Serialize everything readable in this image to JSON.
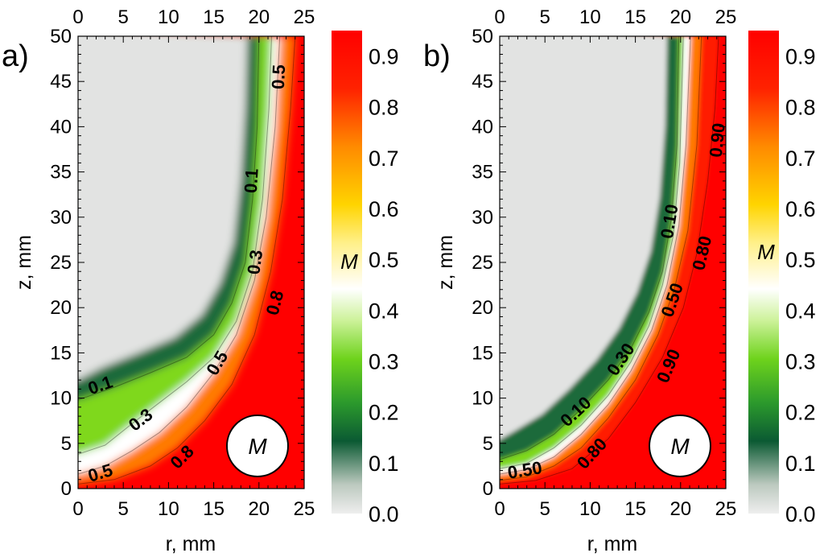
{
  "chart_data": [
    {
      "type": "heatmap",
      "panel_label": "a)",
      "xlabel": "r, mm",
      "ylabel": "z, mm",
      "xlim": [
        0,
        25
      ],
      "ylim": [
        0,
        50
      ],
      "x_ticks": [
        "0",
        "5",
        "10",
        "15",
        "20",
        "25"
      ],
      "y_ticks": [
        "0",
        "5",
        "10",
        "15",
        "20",
        "25",
        "30",
        "35",
        "40",
        "45",
        "50"
      ],
      "marker_label": "M",
      "colorbar": {
        "title": "M",
        "range": [
          0.0,
          0.95
        ],
        "ticks": [
          "0.0",
          "0.1",
          "0.2",
          "0.3",
          "0.4",
          "0.5",
          "0.6",
          "0.7",
          "0.8",
          "0.9"
        ],
        "colors": [
          "#e6e6e6",
          "#0b5a33",
          "#6ed31c",
          "#ffffff",
          "#ff9000",
          "#ff0000"
        ]
      },
      "contours": [
        {
          "level": "0.1",
          "points": [
            [
              0,
              9.8
            ],
            [
              4,
              11.2
            ],
            [
              8,
              12.8
            ],
            [
              12,
              14.5
            ],
            [
              15,
              17
            ],
            [
              17,
              20.5
            ],
            [
              18.5,
              25
            ],
            [
              19.3,
              32
            ],
            [
              19.8,
              40
            ],
            [
              20,
              50
            ]
          ]
        },
        {
          "level": "0.3",
          "points": [
            [
              0,
              3.8
            ],
            [
              3,
              4.8
            ],
            [
              6,
              7.2
            ],
            [
              9,
              9.5
            ],
            [
              12,
              11.8
            ],
            [
              15,
              14.5
            ],
            [
              17.5,
              18.5
            ],
            [
              19.3,
              24
            ],
            [
              20.4,
              32
            ],
            [
              21.1,
              42
            ],
            [
              21.4,
              50
            ]
          ]
        },
        {
          "level": "0.5",
          "points": [
            [
              0,
              1.6
            ],
            [
              3,
              2.5
            ],
            [
              6,
              4.2
            ],
            [
              9,
              6.2
            ],
            [
              12,
              9
            ],
            [
              15,
              12.8
            ],
            [
              17.5,
              17
            ],
            [
              19.5,
              23
            ],
            [
              20.8,
              30
            ],
            [
              21.8,
              40
            ],
            [
              22.3,
              50
            ]
          ]
        },
        {
          "level": "0.8",
          "points": [
            [
              0,
              0.5
            ],
            [
              4,
              1
            ],
            [
              8,
              2.5
            ],
            [
              11,
              4.5
            ],
            [
              14,
              7.5
            ],
            [
              17,
              11.5
            ],
            [
              19.5,
              17
            ],
            [
              21.3,
              24
            ],
            [
              22.6,
              32
            ],
            [
              23.5,
              42
            ],
            [
              24,
              50
            ]
          ]
        }
      ],
      "contour_labels": [
        {
          "text": "0.1",
          "r": 2.5,
          "z": 11.3
        },
        {
          "text": "0.1",
          "r": 19.3,
          "z": 34
        },
        {
          "text": "0.3",
          "r": 7,
          "z": 7.5
        },
        {
          "text": "0.3",
          "r": 19.7,
          "z": 25
        },
        {
          "text": "0.5",
          "r": 2.5,
          "z": 1.6
        },
        {
          "text": "0.5",
          "r": 15.5,
          "z": 13.8
        },
        {
          "text": "0.5",
          "r": 22.3,
          "z": 45.5
        },
        {
          "text": "0.8",
          "r": 11.6,
          "z": 3.4
        },
        {
          "text": "0.8",
          "r": 21.9,
          "z": 20.5
        }
      ]
    },
    {
      "type": "heatmap",
      "panel_label": "b)",
      "xlabel": "r, mm",
      "ylabel": "z, mm",
      "xlim": [
        0,
        25
      ],
      "ylim": [
        0,
        50
      ],
      "x_ticks": [
        "0",
        "5",
        "10",
        "15",
        "20",
        "25"
      ],
      "y_ticks": [
        "0",
        "5",
        "10",
        "15",
        "20",
        "25",
        "30",
        "35",
        "40",
        "45",
        "50"
      ],
      "marker_label": "M",
      "colorbar": {
        "title": "M",
        "range": [
          0.0,
          0.95
        ],
        "ticks": [
          "0.0",
          "0.1",
          "0.2",
          "0.3",
          "0.4",
          "0.5",
          "0.6",
          "0.7",
          "0.8",
          "0.9"
        ],
        "colors": [
          "#e6e6e6",
          "#0b5a33",
          "#6ed31c",
          "#ffffff",
          "#ff9000",
          "#ff0000"
        ]
      },
      "contours": [
        {
          "level": "0.10",
          "points": [
            [
              0,
              3.2
            ],
            [
              3,
              4.2
            ],
            [
              6,
              6
            ],
            [
              9,
              8.8
            ],
            [
              12,
              12
            ],
            [
              14.5,
              15.5
            ],
            [
              16.5,
              19.5
            ],
            [
              18,
              24
            ],
            [
              19,
              30
            ],
            [
              19.6,
              38
            ],
            [
              19.8,
              50
            ]
          ]
        },
        {
          "level": "0.30",
          "points": [
            [
              0,
              2.2
            ],
            [
              3,
              2.8
            ],
            [
              6,
              4.5
            ],
            [
              9,
              7
            ],
            [
              12,
              10.3
            ],
            [
              14.5,
              14
            ],
            [
              16.5,
              18
            ],
            [
              18,
              22.5
            ],
            [
              19.2,
              28
            ],
            [
              19.9,
              36
            ],
            [
              20.3,
              50
            ]
          ]
        },
        {
          "level": "0.50",
          "points": [
            [
              0,
              1.6
            ],
            [
              3,
              2.1
            ],
            [
              6,
              3.5
            ],
            [
              9,
              6
            ],
            [
              12,
              9.3
            ],
            [
              14.5,
              13
            ],
            [
              16.8,
              17.5
            ],
            [
              18.5,
              22.5
            ],
            [
              19.8,
              29
            ],
            [
              20.6,
              38
            ],
            [
              21.1,
              50
            ]
          ]
        },
        {
          "level": "0.80",
          "points": [
            [
              0,
              0.9
            ],
            [
              3,
              1.3
            ],
            [
              6,
              2.5
            ],
            [
              9,
              4.5
            ],
            [
              12,
              7.8
            ],
            [
              15,
              12
            ],
            [
              17.5,
              17
            ],
            [
              19.3,
              22
            ],
            [
              20.8,
              28.5
            ],
            [
              21.8,
              38
            ],
            [
              22.3,
              50
            ]
          ]
        },
        {
          "level": "0.90",
          "points": [
            [
              0,
              0.5
            ],
            [
              4,
              0.9
            ],
            [
              8,
              2.2
            ],
            [
              12,
              5.5
            ],
            [
              15,
              9.5
            ],
            [
              18,
              14.5
            ],
            [
              20.3,
              20
            ],
            [
              21.8,
              26
            ],
            [
              23,
              34
            ],
            [
              23.8,
              42
            ],
            [
              24.2,
              50
            ]
          ]
        }
      ],
      "contour_labels": [
        {
          "text": "0.50",
          "r": 2.8,
          "z": 1.9
        },
        {
          "text": "0.80",
          "r": 10.3,
          "z": 3.8
        },
        {
          "text": "0.10",
          "r": 8.5,
          "z": 8.4
        },
        {
          "text": "0.30",
          "r": 13.5,
          "z": 14.2
        },
        {
          "text": "0.50",
          "r": 19.2,
          "z": 20.8
        },
        {
          "text": "0.10",
          "r": 18.9,
          "z": 29.5
        },
        {
          "text": "0.90",
          "r": 18.8,
          "z": 13.5
        },
        {
          "text": "0.80",
          "r": 22.5,
          "z": 26
        },
        {
          "text": "0.90",
          "r": 24.2,
          "z": 38.5
        }
      ]
    }
  ]
}
